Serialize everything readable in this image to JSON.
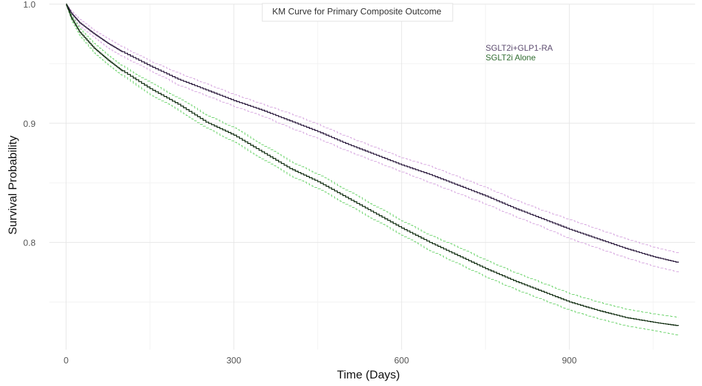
{
  "chart_data": {
    "type": "line",
    "title": "KM Curve for Primary Composite Outcome",
    "xlabel": "Time (Days)",
    "ylabel": "Survival Probability",
    "xlim": [
      -30,
      1125
    ],
    "ylim": [
      0.71,
      1.0
    ],
    "x_ticks": [
      0,
      300,
      600,
      900
    ],
    "x_tick_labels": [
      "0",
      "300",
      "600",
      "900"
    ],
    "y_ticks": [
      0.8,
      0.9,
      1.0
    ],
    "y_tick_labels": [
      "0.8",
      "0.9",
      "1.0"
    ],
    "x_minor_gridlines": [
      150,
      450,
      750,
      1050
    ],
    "y_minor_gridlines": [
      0.75,
      0.85,
      0.95
    ],
    "grid": true,
    "legend_position": "top-right",
    "series": [
      {
        "name": "SGLT2i+GLP1-RA",
        "color": "#2b1a3d",
        "ci_color": "#d7a8e0",
        "x": [
          0,
          10,
          25,
          50,
          75,
          100,
          150,
          200,
          250,
          300,
          350,
          400,
          450,
          500,
          550,
          600,
          650,
          700,
          750,
          800,
          850,
          900,
          950,
          1000,
          1050,
          1095
        ],
        "y": [
          1.0,
          0.992,
          0.984,
          0.975,
          0.967,
          0.96,
          0.948,
          0.937,
          0.928,
          0.919,
          0.911,
          0.902,
          0.893,
          0.883,
          0.874,
          0.865,
          0.857,
          0.848,
          0.839,
          0.829,
          0.82,
          0.811,
          0.803,
          0.795,
          0.788,
          0.783
        ],
        "ci_upper": [
          1.0,
          0.994,
          0.987,
          0.978,
          0.971,
          0.964,
          0.952,
          0.942,
          0.933,
          0.924,
          0.916,
          0.908,
          0.899,
          0.889,
          0.88,
          0.871,
          0.864,
          0.855,
          0.846,
          0.836,
          0.827,
          0.819,
          0.811,
          0.803,
          0.796,
          0.791
        ],
        "ci_lower": [
          1.0,
          0.99,
          0.981,
          0.972,
          0.963,
          0.956,
          0.944,
          0.932,
          0.923,
          0.914,
          0.906,
          0.896,
          0.887,
          0.877,
          0.868,
          0.859,
          0.85,
          0.841,
          0.832,
          0.822,
          0.813,
          0.803,
          0.795,
          0.787,
          0.78,
          0.775
        ]
      },
      {
        "name": "SGLT2i Alone",
        "color": "#0d2a0d",
        "ci_color": "#6fd46f",
        "x": [
          0,
          10,
          25,
          50,
          75,
          100,
          150,
          200,
          250,
          300,
          350,
          400,
          450,
          500,
          550,
          600,
          650,
          700,
          750,
          800,
          850,
          900,
          950,
          1000,
          1050,
          1095
        ],
        "y": [
          1.0,
          0.988,
          0.976,
          0.963,
          0.953,
          0.944,
          0.929,
          0.916,
          0.901,
          0.89,
          0.876,
          0.862,
          0.851,
          0.838,
          0.825,
          0.812,
          0.8,
          0.789,
          0.778,
          0.768,
          0.759,
          0.75,
          0.743,
          0.737,
          0.733,
          0.73
        ],
        "ci_upper": [
          1.0,
          0.99,
          0.979,
          0.967,
          0.957,
          0.948,
          0.934,
          0.921,
          0.907,
          0.896,
          0.882,
          0.868,
          0.857,
          0.844,
          0.831,
          0.818,
          0.806,
          0.796,
          0.785,
          0.775,
          0.766,
          0.757,
          0.75,
          0.744,
          0.74,
          0.737
        ],
        "ci_lower": [
          1.0,
          0.986,
          0.973,
          0.959,
          0.949,
          0.94,
          0.924,
          0.911,
          0.896,
          0.884,
          0.87,
          0.856,
          0.845,
          0.832,
          0.819,
          0.806,
          0.793,
          0.782,
          0.771,
          0.761,
          0.752,
          0.743,
          0.736,
          0.73,
          0.726,
          0.722
        ]
      }
    ]
  }
}
